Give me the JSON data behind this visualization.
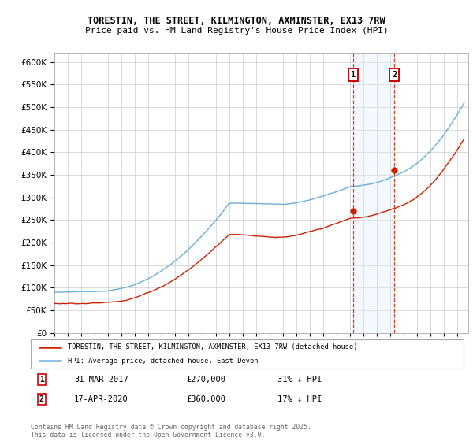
{
  "title_line1": "TORESTIN, THE STREET, KILMINGTON, AXMINSTER, EX13 7RW",
  "title_line2": "Price paid vs. HM Land Registry's House Price Index (HPI)",
  "hpi_color": "#6baed6",
  "price_color": "#cc2200",
  "vline_color": "#cc2200",
  "vshade_color": "#ddeeff",
  "ylim": [
    0,
    620000
  ],
  "yticks": [
    0,
    50000,
    100000,
    150000,
    200000,
    250000,
    300000,
    350000,
    400000,
    450000,
    500000,
    550000,
    600000
  ],
  "sale1_date": "31-MAR-2017",
  "sale1_year": 2017.25,
  "sale1_price": 270000,
  "sale1_hpi_pct": "31% ↓ HPI",
  "sale2_date": "17-APR-2020",
  "sale2_year": 2020.29,
  "sale2_price": 360000,
  "sale2_hpi_pct": "17% ↓ HPI",
  "legend_line1": "TORESTIN, THE STREET, KILMINGTON, AXMINSTER, EX13 7RW (detached house)",
  "legend_line2": "HPI: Average price, detached house, East Devon",
  "footnote": "Contains HM Land Registry data © Crown copyright and database right 2025.\nThis data is licensed under the Open Government Licence v3.0.",
  "bg_color": "#ffffff",
  "grid_color": "#cccccc"
}
